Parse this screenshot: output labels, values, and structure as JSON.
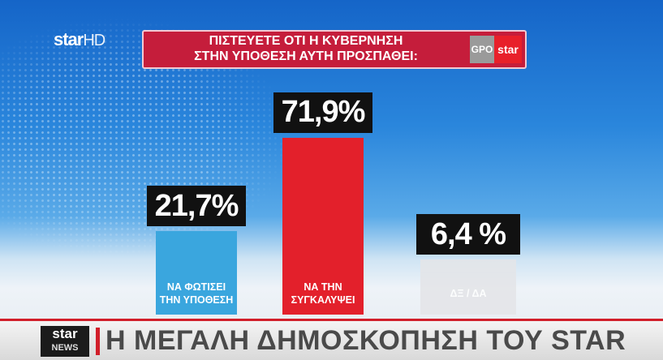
{
  "logo": {
    "brand": "star",
    "channel": "HD"
  },
  "badge": {
    "pollster": "GPO",
    "brand": "star"
  },
  "chart_data": {
    "type": "bar",
    "title": [
      "ΠΙΣΤΕΥΕΤΕ ΟΤΙ Η ΚΥΒΕΡΝΗΣΗ",
      "ΣΤΗΝ ΥΠΟΘΕΣΗ ΑΥΤΗ ΠΡΟΣΠΑΘΕΙ:"
    ],
    "categories": [
      "ΝΑ ΦΩΤΙΣΕΙ ΤΗΝ ΥΠΟΘΕΣΗ",
      "ΝΑ ΤΗΝ ΣΥΓΚΑΛΥΨΕΙ",
      "ΔΞ / ΔΑ"
    ],
    "values": [
      21.7,
      71.9,
      6.4
    ],
    "value_labels": [
      "21,7%",
      "71,9%",
      "6,4 %"
    ],
    "colors": [
      "#3aa6de",
      "#e3202b",
      "#e4e5e8"
    ]
  },
  "ticker": {
    "logo_top": "star",
    "logo_bottom": "NEWS",
    "headline": "Η ΜΕΓΑΛΗ ΔΗΜΟΣΚΟΠΗΣΗ ΤΟΥ STAR"
  }
}
